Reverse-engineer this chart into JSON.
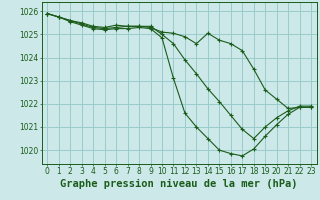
{
  "bg_color": "#cce8e8",
  "grid_color": "#99cccc",
  "line_color": "#1a5c1a",
  "marker_color": "#1a5c1a",
  "xlabel": "Graphe pression niveau de la mer (hPa)",
  "xlim": [
    -0.5,
    23.5
  ],
  "ylim": [
    1019.4,
    1026.4
  ],
  "yticks": [
    1020,
    1021,
    1022,
    1023,
    1024,
    1025,
    1026
  ],
  "xticks": [
    0,
    1,
    2,
    3,
    4,
    5,
    6,
    7,
    8,
    9,
    10,
    11,
    12,
    13,
    14,
    15,
    16,
    17,
    18,
    19,
    20,
    21,
    22,
    23
  ],
  "series": [
    [
      1025.9,
      1025.75,
      1025.6,
      1025.5,
      1025.35,
      1025.3,
      1025.4,
      1025.35,
      1025.35,
      1025.3,
      1025.1,
      1025.05,
      1024.9,
      1024.6,
      1025.05,
      1024.75,
      1024.6,
      1024.3,
      1023.5,
      1022.6,
      1022.2,
      1021.8,
      1021.85,
      1021.85
    ],
    [
      1025.9,
      1025.75,
      1025.6,
      1025.45,
      1025.3,
      1025.25,
      1025.3,
      1025.35,
      1025.35,
      1025.35,
      1025.0,
      1024.6,
      1023.9,
      1023.3,
      1022.65,
      1022.1,
      1021.5,
      1020.9,
      1020.5,
      1021.0,
      1021.4,
      1021.7,
      1021.9,
      1021.9
    ],
    [
      1025.9,
      1025.75,
      1025.55,
      1025.4,
      1025.25,
      1025.2,
      1025.25,
      1025.25,
      1025.3,
      1025.25,
      1024.85,
      1023.1,
      1021.6,
      1021.0,
      1020.5,
      1020.0,
      1019.85,
      1019.75,
      1020.05,
      1020.6,
      1021.1,
      1021.55,
      1021.85,
      1021.85
    ]
  ],
  "tick_fontsize": 5.5,
  "label_fontsize": 7.5,
  "label_fontweight": "bold"
}
